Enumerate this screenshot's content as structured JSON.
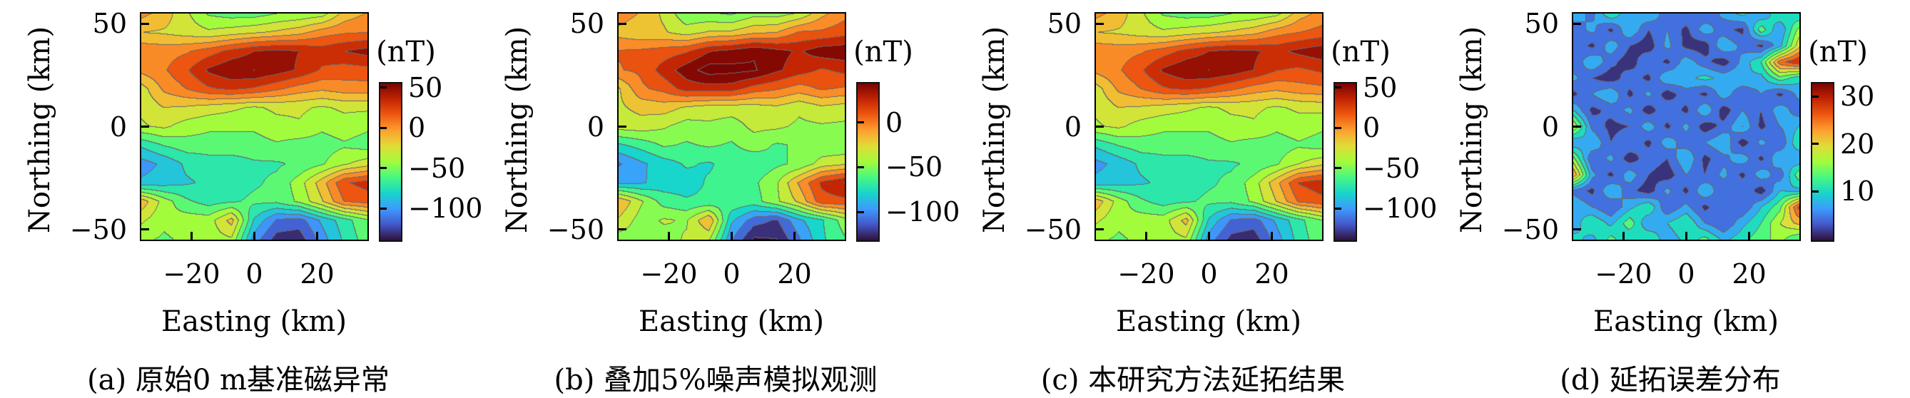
{
  "figure_meta": {
    "background": "#ffffff",
    "axis_color": "#000000",
    "contour_line_color": "#696969"
  },
  "colormap": {
    "name": "turbo",
    "stops": [
      [
        0.0,
        "#30123b"
      ],
      [
        0.1,
        "#4458cb"
      ],
      [
        0.2,
        "#3e9bfe"
      ],
      [
        0.3,
        "#18d6cb"
      ],
      [
        0.4,
        "#46f884"
      ],
      [
        0.5,
        "#a2fc3c"
      ],
      [
        0.6,
        "#e1dd37"
      ],
      [
        0.7,
        "#fea130"
      ],
      [
        0.8,
        "#ef5a11"
      ],
      [
        0.9,
        "#c42503"
      ],
      [
        1.0,
        "#7a0403"
      ]
    ]
  },
  "chart_data": [
    {
      "type": "heatmap",
      "title": "(a) 原始0 m基准磁异常",
      "xlabel": "Easting (km)",
      "ylabel": "Northing (km)",
      "unit": "(nT)",
      "xlim": [
        -36,
        36
      ],
      "ylim": [
        -55,
        55
      ],
      "x_ticks": [
        -20,
        0,
        20
      ],
      "x_tick_labels": [
        "−20",
        "0",
        "20"
      ],
      "y_ticks": [
        50,
        0,
        -50
      ],
      "y_tick_labels": [
        "50",
        "0",
        "−50"
      ],
      "colorbar_ticks": [
        50,
        0,
        -50,
        -100
      ],
      "colorbar_tick_labels": [
        "50",
        "0",
        "−50",
        "−100"
      ],
      "vmin": -138,
      "vmax": 57,
      "band_step": 15,
      "x": [
        -36,
        -29,
        -22,
        -14,
        -7,
        0,
        7,
        14,
        22,
        29,
        36
      ],
      "y": [
        55,
        46,
        37,
        28,
        18,
        9,
        0,
        -9,
        -18,
        -28,
        -37,
        -46,
        -55
      ],
      "values": [
        [
          2,
          -10,
          -30,
          -50,
          -55,
          -55,
          -48,
          -45,
          -40,
          -12,
          -2
        ],
        [
          -18,
          -20,
          -25,
          -30,
          -25,
          -20,
          -15,
          -8,
          5,
          10,
          12
        ],
        [
          8,
          6,
          10,
          20,
          32,
          42,
          46,
          42,
          35,
          42,
          48
        ],
        [
          2,
          10,
          25,
          45,
          55,
          57,
          50,
          40,
          25,
          20,
          22
        ],
        [
          -25,
          0,
          12,
          25,
          30,
          25,
          15,
          5,
          0,
          5,
          5
        ],
        [
          -30,
          -18,
          -20,
          -25,
          -30,
          -35,
          -30,
          -30,
          -35,
          -30,
          -30
        ],
        [
          -35,
          -30,
          -40,
          -45,
          -45,
          -45,
          -38,
          -35,
          -45,
          -40,
          -45
        ],
        [
          -75,
          -62,
          -55,
          -55,
          -55,
          -55,
          -50,
          -55,
          -55,
          -50,
          -55
        ],
        [
          -100,
          -90,
          -75,
          -70,
          -70,
          -65,
          -65,
          -60,
          -50,
          -35,
          -25
        ],
        [
          -90,
          -85,
          -80,
          -75,
          -70,
          -65,
          -60,
          -40,
          -10,
          25,
          33
        ],
        [
          -8,
          -40,
          -60,
          -70,
          -65,
          -60,
          -60,
          -45,
          -20,
          12,
          18
        ],
        [
          -30,
          -45,
          -40,
          -40,
          -12,
          -80,
          -110,
          -115,
          -90,
          -70,
          -50
        ],
        [
          -45,
          -50,
          -45,
          -40,
          -35,
          -100,
          -130,
          -132,
          -100,
          -75,
          -55
        ]
      ]
    },
    {
      "type": "heatmap",
      "title": "(b) 叠加5%噪声模拟观测",
      "xlabel": "Easting (km)",
      "ylabel": "Northing (km)",
      "unit": "(nT)",
      "xlim": [
        -36,
        36
      ],
      "ylim": [
        -55,
        55
      ],
      "x_ticks": [
        -20,
        0,
        20
      ],
      "x_tick_labels": [
        "−20",
        "0",
        "20"
      ],
      "y_ticks": [
        50,
        0,
        -50
      ],
      "y_tick_labels": [
        "50",
        "0",
        "−50"
      ],
      "colorbar_ticks": [
        0,
        -50,
        -100
      ],
      "colorbar_tick_labels": [
        "0",
        "−50",
        "−100"
      ],
      "vmin": -130,
      "vmax": 45,
      "band_step": 15,
      "x": [
        -36,
        -29,
        -22,
        -14,
        -7,
        0,
        7,
        14,
        22,
        29,
        36
      ],
      "y": [
        55,
        46,
        37,
        28,
        18,
        9,
        0,
        -9,
        -18,
        -28,
        -37,
        -46,
        -55
      ],
      "values": [
        [
          0,
          -12,
          -28,
          -52,
          -53,
          -57,
          -45,
          -47,
          -38,
          -14,
          0
        ],
        [
          -16,
          -22,
          -23,
          -32,
          -23,
          -22,
          -13,
          -10,
          7,
          8,
          14
        ],
        [
          6,
          8,
          12,
          18,
          34,
          40,
          48,
          40,
          33,
          44,
          46
        ],
        [
          4,
          8,
          27,
          43,
          57,
          55,
          52,
          38,
          27,
          18,
          24
        ],
        [
          -27,
          2,
          10,
          27,
          28,
          27,
          13,
          7,
          -2,
          7,
          3
        ],
        [
          -28,
          -20,
          -18,
          -27,
          -32,
          -33,
          -32,
          -28,
          -37,
          -28,
          -32
        ],
        [
          -33,
          -32,
          -38,
          -47,
          -43,
          -47,
          -36,
          -37,
          -43,
          -42,
          -43
        ],
        [
          -73,
          -64,
          -53,
          -57,
          -53,
          -57,
          -48,
          -57,
          -53,
          -52,
          -53
        ],
        [
          -102,
          -88,
          -77,
          -68,
          -72,
          -63,
          -67,
          -58,
          -52,
          -33,
          -27
        ],
        [
          -88,
          -87,
          -78,
          -77,
          -68,
          -67,
          -58,
          -42,
          -8,
          23,
          35
        ],
        [
          -10,
          -38,
          -62,
          -68,
          -67,
          -58,
          -62,
          -43,
          -22,
          14,
          16
        ],
        [
          -28,
          -47,
          -38,
          -42,
          -10,
          -82,
          -108,
          -117,
          -88,
          -72,
          -48
        ],
        [
          -47,
          -48,
          -47,
          -38,
          -37,
          -98,
          -132,
          -130,
          -102,
          -73,
          -57
        ]
      ]
    },
    {
      "type": "heatmap",
      "title": "(c) 本研究方法延拓结果",
      "xlabel": "Easting (km)",
      "ylabel": "Northing (km)",
      "unit": "(nT)",
      "xlim": [
        -36,
        36
      ],
      "ylim": [
        -55,
        55
      ],
      "x_ticks": [
        -20,
        0,
        20
      ],
      "x_tick_labels": [
        "−20",
        "0",
        "20"
      ],
      "y_ticks": [
        50,
        0,
        -50
      ],
      "y_tick_labels": [
        "50",
        "0",
        "−50"
      ],
      "colorbar_ticks": [
        50,
        0,
        -50,
        -100
      ],
      "colorbar_tick_labels": [
        "50",
        "0",
        "−50",
        "−100"
      ],
      "vmin": -138,
      "vmax": 57,
      "band_step": 15,
      "x": [
        -36,
        -29,
        -22,
        -14,
        -7,
        0,
        7,
        14,
        22,
        29,
        36
      ],
      "y": [
        55,
        46,
        37,
        28,
        18,
        9,
        0,
        -9,
        -18,
        -28,
        -37,
        -46,
        -55
      ],
      "values": [
        [
          2,
          -10,
          -30,
          -50,
          -55,
          -55,
          -48,
          -45,
          -38,
          -10,
          2
        ],
        [
          -18,
          -20,
          -25,
          -30,
          -25,
          -20,
          -15,
          -8,
          6,
          12,
          18
        ],
        [
          8,
          6,
          10,
          20,
          32,
          42,
          46,
          44,
          38,
          46,
          52
        ],
        [
          2,
          10,
          25,
          45,
          55,
          57,
          52,
          42,
          28,
          24,
          30
        ],
        [
          -25,
          0,
          12,
          25,
          30,
          25,
          15,
          5,
          0,
          6,
          8
        ],
        [
          -30,
          -18,
          -20,
          -25,
          -30,
          -35,
          -30,
          -30,
          -35,
          -30,
          -28
        ],
        [
          -35,
          -30,
          -40,
          -45,
          -45,
          -45,
          -38,
          -35,
          -45,
          -40,
          -45
        ],
        [
          -75,
          -62,
          -55,
          -55,
          -55,
          -55,
          -50,
          -55,
          -55,
          -50,
          -55
        ],
        [
          -98,
          -88,
          -75,
          -70,
          -70,
          -65,
          -65,
          -60,
          -50,
          -33,
          -22
        ],
        [
          -88,
          -84,
          -80,
          -75,
          -70,
          -65,
          -60,
          -40,
          -8,
          28,
          36
        ],
        [
          -8,
          -40,
          -60,
          -70,
          -65,
          -60,
          -60,
          -45,
          -18,
          14,
          22
        ],
        [
          -30,
          -45,
          -40,
          -40,
          -12,
          -80,
          -110,
          -115,
          -90,
          -68,
          -48
        ],
        [
          -45,
          -50,
          -45,
          -40,
          -35,
          -100,
          -128,
          -132,
          -100,
          -72,
          -52
        ]
      ]
    },
    {
      "type": "heatmap",
      "title": "(d) 延拓误差分布",
      "xlabel": "Easting (km)",
      "ylabel": "Northing (km)",
      "unit": "(nT)",
      "xlim": [
        -36,
        36
      ],
      "ylim": [
        -55,
        55
      ],
      "x_ticks": [
        -20,
        0,
        20
      ],
      "x_tick_labels": [
        "−20",
        "0",
        "20"
      ],
      "y_ticks": [
        50,
        0,
        -50
      ],
      "y_tick_labels": [
        "50",
        "0",
        "−50"
      ],
      "colorbar_ticks": [
        30,
        20,
        10
      ],
      "colorbar_tick_labels": [
        "30",
        "20",
        "10"
      ],
      "vmin": 0,
      "vmax": 33,
      "band_step": 3,
      "x": [
        -36,
        -30,
        -24,
        -18,
        -12,
        -6,
        0,
        6,
        12,
        18,
        24,
        30,
        36
      ],
      "y": [
        55,
        47,
        39,
        31,
        23,
        15,
        7,
        -1,
        -9,
        -17,
        -25,
        -33,
        -41,
        -49,
        -55
      ],
      "values": [
        [
          8,
          5,
          12,
          6,
          9,
          4,
          6,
          3,
          7,
          10,
          6,
          12,
          9
        ],
        [
          4,
          7,
          2,
          9,
          3,
          6,
          2,
          8,
          4,
          2,
          14,
          6,
          16
        ],
        [
          6,
          2,
          8,
          3,
          1,
          7,
          2,
          1,
          9,
          5,
          2,
          8,
          20
        ],
        [
          3,
          9,
          4,
          1,
          6,
          2,
          8,
          4,
          1,
          7,
          12,
          26,
          30
        ],
        [
          7,
          3,
          1,
          5,
          2,
          9,
          8,
          10,
          8,
          9,
          8,
          14,
          10
        ],
        [
          2,
          6,
          9,
          2,
          7,
          1,
          5,
          2,
          8,
          3,
          6,
          2,
          7
        ],
        [
          9,
          2,
          4,
          7,
          1,
          6,
          2,
          9,
          1,
          6,
          3,
          8,
          4
        ],
        [
          18,
          5,
          2,
          3,
          8,
          2,
          7,
          1,
          4,
          9,
          2,
          6,
          9
        ],
        [
          6,
          9,
          3,
          6,
          2,
          8,
          4,
          6,
          9,
          1,
          7,
          3,
          12
        ],
        [
          16,
          3,
          7,
          1,
          5,
          3,
          9,
          2,
          5,
          8,
          2,
          9,
          6
        ],
        [
          24,
          7,
          2,
          8,
          3,
          1,
          6,
          3,
          7,
          2,
          8,
          4,
          14
        ],
        [
          5,
          2,
          9,
          4,
          1,
          7,
          2,
          9,
          3,
          6,
          1,
          9,
          8
        ],
        [
          9,
          6,
          3,
          8,
          12,
          3,
          7,
          2,
          6,
          3,
          9,
          14,
          28
        ],
        [
          7,
          12,
          8,
          14,
          6,
          9,
          12,
          6,
          3,
          8,
          12,
          18,
          22
        ],
        [
          10,
          8,
          13,
          9,
          12,
          7,
          10,
          13,
          8,
          11,
          14,
          16,
          12
        ]
      ]
    }
  ]
}
